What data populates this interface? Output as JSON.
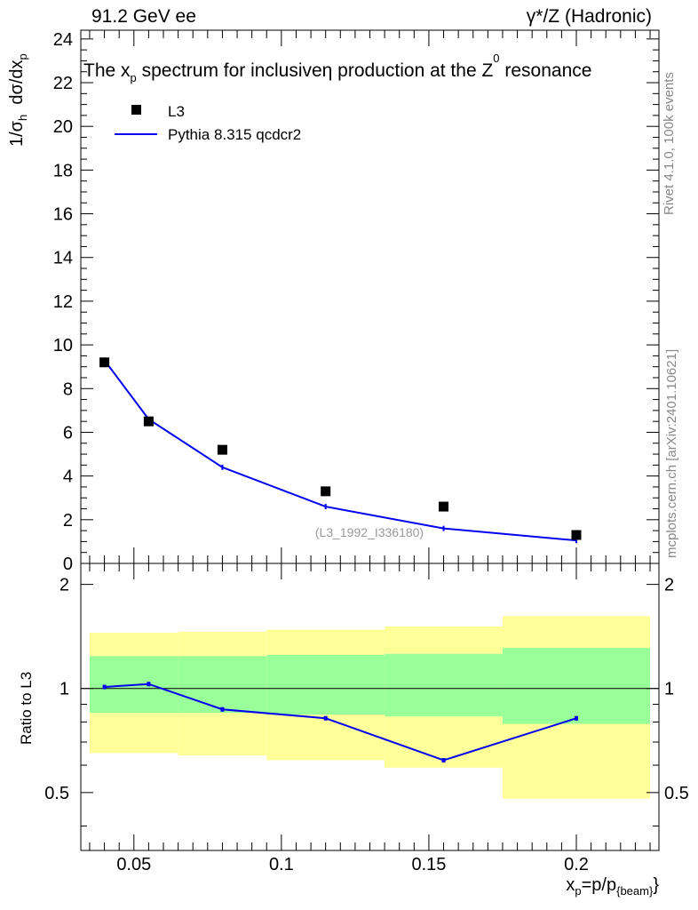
{
  "header": {
    "energy": "91.2 GeV ee",
    "process": "γ*/Z (Hadronic)",
    "plot_title": "The x_p spectrum for inclusive η production at the Z⁰ resonance"
  },
  "side_labels": {
    "rivet": "Rivet 4.1.0,  100k events",
    "mcplots": "mcplots.cern.ch [arXiv:2401.10621]"
  },
  "chart_data": [
    {
      "type": "scatter",
      "title": "The x_p spectrum for inclusive η production at the Z⁰ resonance",
      "xlabel": "x_p=p/p_{beam}",
      "ylabel": "1/σ_h dσ/dx_p",
      "xlim": [
        0.032,
        0.228
      ],
      "ylim": [
        0,
        24.4
      ],
      "yticks": [
        0,
        2,
        4,
        6,
        8,
        10,
        12,
        14,
        16,
        18,
        20,
        22,
        24
      ],
      "legend": [
        "L3",
        "Pythia 8.315 qcdcr2"
      ],
      "watermark": "(L3_1992_I336180)",
      "series": [
        {
          "name": "L3",
          "x": [
            0.04,
            0.055,
            0.08,
            0.115,
            0.155,
            0.2
          ],
          "y": [
            9.2,
            6.5,
            5.2,
            3.3,
            2.6,
            1.3
          ]
        },
        {
          "name": "Pythia 8.315 qcdcr2",
          "x": [
            0.04,
            0.055,
            0.08,
            0.115,
            0.155,
            0.2
          ],
          "y": [
            9.3,
            6.6,
            4.4,
            2.6,
            1.6,
            1.05
          ]
        }
      ]
    },
    {
      "type": "line",
      "ylabel": "Ratio to L3",
      "xlabel": "x_p=p/p_{beam}",
      "xlim": [
        0.032,
        0.228
      ],
      "ylim": [
        0.34,
        2.3
      ],
      "yticks": [
        0.5,
        1,
        2
      ],
      "xticks": [
        0.05,
        0.1,
        0.15,
        0.2
      ],
      "reference": 1.0,
      "bands": [
        {
          "xlo": 0.035,
          "xhi": 0.065,
          "stat_lo": 0.85,
          "stat_hi": 1.24,
          "syst_lo": 0.65,
          "syst_hi": 1.45
        },
        {
          "xlo": 0.065,
          "xhi": 0.095,
          "stat_lo": 0.85,
          "stat_hi": 1.24,
          "syst_lo": 0.64,
          "syst_hi": 1.46
        },
        {
          "xlo": 0.095,
          "xhi": 0.135,
          "stat_lo": 0.84,
          "stat_hi": 1.25,
          "syst_lo": 0.62,
          "syst_hi": 1.48
        },
        {
          "xlo": 0.135,
          "xhi": 0.175,
          "stat_lo": 0.83,
          "stat_hi": 1.26,
          "syst_lo": 0.59,
          "syst_hi": 1.51
        },
        {
          "xlo": 0.175,
          "xhi": 0.225,
          "stat_lo": 0.79,
          "stat_hi": 1.31,
          "syst_lo": 0.48,
          "syst_hi": 1.62
        }
      ],
      "series": [
        {
          "name": "Pythia 8.315 qcdcr2",
          "x": [
            0.04,
            0.055,
            0.08,
            0.115,
            0.155,
            0.2
          ],
          "y": [
            1.01,
            1.03,
            0.87,
            0.82,
            0.62,
            0.82
          ]
        }
      ]
    }
  ],
  "colors": {
    "mc_line": "#0000ee",
    "stat_band": "#99ff99",
    "syst_band": "#ffff99",
    "watermark": "#999999"
  }
}
